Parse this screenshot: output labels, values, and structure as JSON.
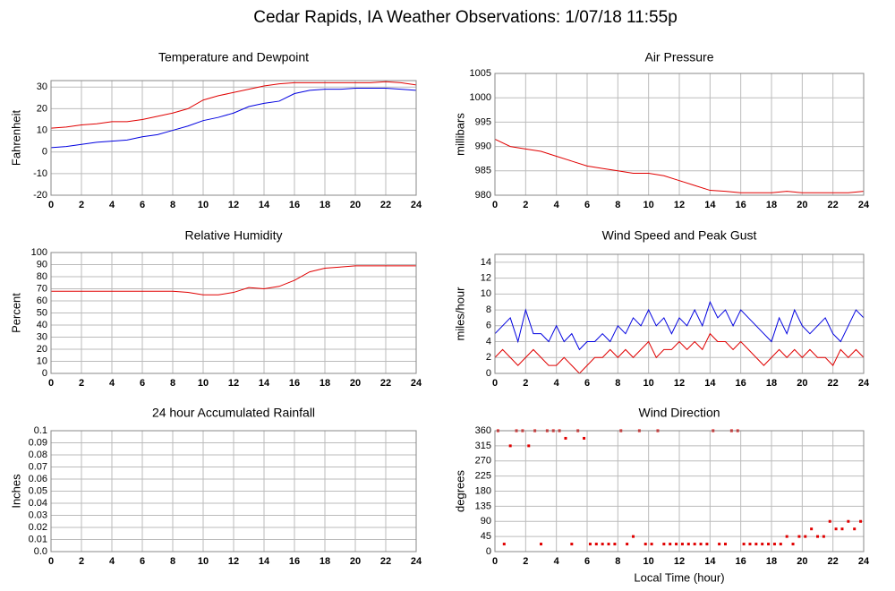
{
  "title": "Cedar Rapids, IA Weather Observations: 1/07/18 11:55p",
  "chart_data": [
    {
      "type": "line",
      "title": "Temperature and Dewpoint",
      "y_label": "Fahrenheit",
      "x": [
        0,
        1,
        2,
        3,
        4,
        5,
        6,
        7,
        8,
        9,
        10,
        11,
        12,
        13,
        14,
        15,
        16,
        17,
        18,
        19,
        20,
        21,
        22,
        23,
        24
      ],
      "series": [
        {
          "color": "#e00000",
          "values": [
            11,
            11.5,
            12.5,
            13,
            14,
            14,
            15,
            16.5,
            18,
            20,
            24,
            26,
            27.5,
            29,
            30.5,
            31.5,
            32,
            32,
            32,
            32,
            32,
            32,
            32.5,
            32,
            31
          ]
        },
        {
          "color": "#0000e0",
          "values": [
            2,
            2.5,
            3.5,
            4.5,
            5,
            5.5,
            7,
            8,
            10,
            12,
            14.5,
            16,
            18,
            21,
            22.5,
            23.5,
            27,
            28.5,
            29,
            29,
            29.5,
            29.5,
            29.5,
            29,
            28.5
          ]
        }
      ],
      "xlim": [
        0,
        24
      ],
      "xticks": [
        0,
        2,
        4,
        6,
        8,
        10,
        12,
        14,
        16,
        18,
        20,
        22,
        24
      ],
      "ylim": [
        -20,
        33
      ],
      "yticks": [
        -20,
        -10,
        0,
        10,
        20,
        30
      ],
      "grid": true
    },
    {
      "type": "line",
      "title": "Air Pressure",
      "y_label": "millibars",
      "x": [
        0,
        1,
        2,
        3,
        4,
        5,
        6,
        7,
        8,
        9,
        10,
        11,
        12,
        13,
        14,
        15,
        16,
        17,
        18,
        19,
        20,
        21,
        22,
        23,
        24
      ],
      "series": [
        {
          "color": "#e00000",
          "values": [
            991.5,
            990,
            989.5,
            989,
            988,
            987,
            986,
            985.5,
            985,
            984.5,
            984.5,
            984,
            983,
            982,
            981,
            980.8,
            980.5,
            980.5,
            980.5,
            980.8,
            980.5,
            980.5,
            980.5,
            980.5,
            980.8
          ]
        }
      ],
      "xlim": [
        0,
        24
      ],
      "xticks": [
        0,
        2,
        4,
        6,
        8,
        10,
        12,
        14,
        16,
        18,
        20,
        22,
        24
      ],
      "ylim": [
        980,
        1005
      ],
      "yticks": [
        980,
        985,
        990,
        995,
        1000,
        1005
      ],
      "grid": true
    },
    {
      "type": "line",
      "title": "Relative Humidity",
      "y_label": "Percent",
      "x": [
        0,
        1,
        2,
        3,
        4,
        5,
        6,
        7,
        8,
        9,
        10,
        11,
        12,
        13,
        14,
        15,
        16,
        17,
        18,
        19,
        20,
        21,
        22,
        23,
        24
      ],
      "series": [
        {
          "color": "#e00000",
          "values": [
            68,
            68,
            68,
            68,
            68,
            68,
            68,
            68,
            68,
            67,
            65,
            65,
            67,
            71,
            70,
            72,
            77,
            84,
            87,
            88,
            89,
            89,
            89,
            89,
            89
          ]
        }
      ],
      "xlim": [
        0,
        24
      ],
      "xticks": [
        0,
        2,
        4,
        6,
        8,
        10,
        12,
        14,
        16,
        18,
        20,
        22,
        24
      ],
      "ylim": [
        0,
        100
      ],
      "yticks": [
        0,
        10,
        20,
        30,
        40,
        50,
        60,
        70,
        80,
        90,
        100
      ],
      "grid": true
    },
    {
      "type": "line",
      "title": "Wind Speed and Peak Gust",
      "y_label": "miles/hour",
      "x": [
        0,
        0.5,
        1,
        1.5,
        2,
        2.5,
        3,
        3.5,
        4,
        4.5,
        5,
        5.5,
        6,
        6.5,
        7,
        7.5,
        8,
        8.5,
        9,
        9.5,
        10,
        10.5,
        11,
        11.5,
        12,
        12.5,
        13,
        13.5,
        14,
        14.5,
        15,
        15.5,
        16,
        16.5,
        17,
        17.5,
        18,
        18.5,
        19,
        19.5,
        20,
        20.5,
        21,
        21.5,
        22,
        22.5,
        23,
        23.5,
        24
      ],
      "series": [
        {
          "color": "#0000e0",
          "values": [
            5,
            6,
            7,
            4,
            8,
            5,
            5,
            4,
            6,
            4,
            5,
            3,
            4,
            4,
            5,
            4,
            6,
            5,
            7,
            6,
            8,
            6,
            7,
            5,
            7,
            6,
            8,
            6,
            9,
            7,
            8,
            6,
            8,
            7,
            6,
            5,
            4,
            7,
            5,
            8,
            6,
            5,
            6,
            7,
            5,
            4,
            6,
            8,
            7
          ]
        },
        {
          "color": "#e00000",
          "values": [
            2,
            3,
            2,
            1,
            2,
            3,
            2,
            1,
            1,
            2,
            1,
            0,
            1,
            2,
            2,
            3,
            2,
            3,
            2,
            3,
            4,
            2,
            3,
            3,
            4,
            3,
            4,
            3,
            5,
            4,
            4,
            3,
            4,
            3,
            2,
            1,
            2,
            3,
            2,
            3,
            2,
            3,
            2,
            2,
            1,
            3,
            2,
            3,
            2
          ]
        }
      ],
      "xlim": [
        0,
        24
      ],
      "xticks": [
        0,
        2,
        4,
        6,
        8,
        10,
        12,
        14,
        16,
        18,
        20,
        22,
        24
      ],
      "ylim": [
        0,
        15
      ],
      "yticks": [
        0,
        2,
        4,
        6,
        8,
        10,
        12,
        14
      ],
      "grid": true
    },
    {
      "type": "line",
      "title": "24 hour Accumulated Rainfall",
      "y_label": "Inches",
      "x": [
        0,
        1,
        2,
        3,
        4,
        5,
        6,
        7,
        8,
        9,
        10,
        11,
        12,
        13,
        14,
        15,
        16,
        17,
        18,
        19,
        20,
        21,
        22,
        23,
        24
      ],
      "series": [
        {
          "color": "#e000e0",
          "values": [
            0,
            0,
            0,
            0,
            0,
            0,
            0,
            0,
            0,
            0,
            0,
            0,
            0,
            0,
            0,
            0,
            0,
            0,
            0,
            0,
            0,
            0,
            0,
            0,
            0
          ]
        }
      ],
      "xlim": [
        0,
        24
      ],
      "xticks": [
        0,
        2,
        4,
        6,
        8,
        10,
        12,
        14,
        16,
        18,
        20,
        22,
        24
      ],
      "ylim": [
        0,
        0.1
      ],
      "yticks": [
        {
          "value": 0,
          "label": "0.0"
        },
        0.01,
        0.02,
        0.03,
        0.04,
        0.05,
        0.06,
        0.07,
        0.08,
        0.09,
        0.1
      ],
      "grid": true
    },
    {
      "type": "scatter",
      "title": "Wind Direction",
      "y_label": "degrees",
      "x_label": "Local Time (hour)",
      "color": "#e00000",
      "x": [
        0.2,
        0.6,
        1.0,
        1.4,
        1.8,
        2.2,
        2.6,
        3.0,
        3.4,
        3.8,
        4.2,
        4.6,
        5.0,
        5.4,
        5.8,
        6.2,
        6.6,
        7.0,
        7.4,
        7.8,
        8.2,
        8.6,
        9.0,
        9.4,
        9.8,
        10.2,
        10.6,
        11.0,
        11.4,
        11.8,
        12.2,
        12.6,
        13.0,
        13.4,
        13.8,
        14.2,
        14.6,
        15.0,
        15.4,
        15.8,
        16.2,
        16.6,
        17.0,
        17.4,
        17.8,
        18.2,
        18.6,
        19.0,
        19.4,
        19.8,
        20.2,
        20.6,
        21.0,
        21.4,
        21.8,
        22.2,
        22.6,
        23.0,
        23.4,
        23.8
      ],
      "values": [
        360,
        22.5,
        315,
        360,
        360,
        315,
        360,
        22.5,
        360,
        360,
        360,
        337.5,
        22.5,
        360,
        337.5,
        22.5,
        22.5,
        22.5,
        22.5,
        22.5,
        360,
        22.5,
        45,
        360,
        22.5,
        22.5,
        360,
        22.5,
        22.5,
        22.5,
        22.5,
        22.5,
        22.5,
        22.5,
        22.5,
        360,
        22.5,
        22.5,
        360,
        360,
        22.5,
        22.5,
        22.5,
        22.5,
        22.5,
        22.5,
        22.5,
        45,
        22.5,
        45,
        45,
        67.5,
        45,
        45,
        90,
        67.5,
        67.5,
        90,
        67.5,
        90
      ],
      "xlim": [
        0,
        24
      ],
      "xticks": [
        0,
        2,
        4,
        6,
        8,
        10,
        12,
        14,
        16,
        18,
        20,
        22,
        24
      ],
      "ylim": [
        0,
        360
      ],
      "yticks": [
        0,
        45,
        90,
        135,
        180,
        225,
        270,
        315,
        360
      ],
      "grid": true
    }
  ]
}
